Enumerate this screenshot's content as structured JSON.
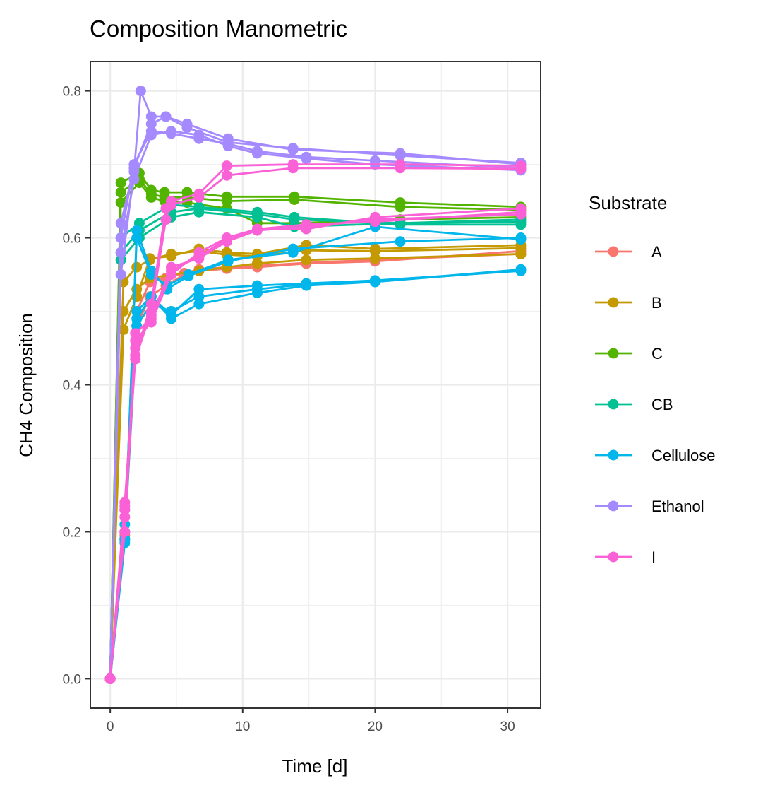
{
  "chart_data": {
    "type": "line",
    "title": "Composition Manometric",
    "xlabel": "Time [d]",
    "ylabel": "CH4 Composition",
    "xlim": [
      -1.5,
      32.5
    ],
    "ylim": [
      -0.04,
      0.84
    ],
    "x_ticks": [
      0,
      10,
      20,
      30
    ],
    "x_tick_labels": [
      "0",
      "10",
      "20",
      "30"
    ],
    "y_ticks": [
      0.0,
      0.2,
      0.4,
      0.6,
      0.8
    ],
    "y_tick_labels": [
      "0.0",
      "0.2",
      "0.4",
      "0.6",
      "0.8"
    ],
    "grid": true,
    "legend": {
      "title": "Substrate",
      "placement": "right"
    },
    "series": [
      {
        "name": "A",
        "color": "#F8766D",
        "lines": [
          [
            [
              0,
              0
            ],
            [
              1.1,
              0.195
            ],
            [
              2,
              0.48
            ],
            [
              3,
              0.52
            ],
            [
              4.2,
              0.535
            ],
            [
              5.6,
              0.55
            ],
            [
              6.7,
              0.555
            ],
            [
              8.8,
              0.558
            ],
            [
              11.1,
              0.56
            ],
            [
              14.8,
              0.565
            ],
            [
              20,
              0.568
            ],
            [
              31,
              0.582
            ]
          ],
          [
            [
              0,
              0
            ],
            [
              1.1,
              0.23
            ],
            [
              2,
              0.5
            ],
            [
              3,
              0.54
            ],
            [
              4.2,
              0.545
            ],
            [
              5.6,
              0.552
            ],
            [
              6.7,
              0.557
            ],
            [
              8.8,
              0.56
            ],
            [
              11.1,
              0.562
            ],
            [
              14.8,
              0.566
            ],
            [
              20,
              0.57
            ],
            [
              31,
              0.578
            ]
          ]
        ]
      },
      {
        "name": "B",
        "color": "#C49A00",
        "lines": [
          [
            [
              0,
              0
            ],
            [
              1,
              0.475
            ],
            [
              2,
              0.52
            ],
            [
              3,
              0.572
            ],
            [
              4.6,
              0.575
            ],
            [
              6.7,
              0.585
            ],
            [
              8.8,
              0.58
            ],
            [
              11.1,
              0.578
            ],
            [
              14.8,
              0.59
            ],
            [
              20,
              0.585
            ],
            [
              31,
              0.59
            ]
          ],
          [
            [
              0,
              0
            ],
            [
              1,
              0.54
            ],
            [
              2,
              0.56
            ],
            [
              3,
              0.57
            ],
            [
              4.6,
              0.578
            ],
            [
              6.7,
              0.582
            ],
            [
              8.8,
              0.577
            ],
            [
              11.1,
              0.575
            ],
            [
              14.8,
              0.583
            ],
            [
              20,
              0.582
            ],
            [
              31,
              0.586
            ]
          ],
          [
            [
              0,
              0
            ],
            [
              1,
              0.5
            ],
            [
              2,
              0.53
            ],
            [
              3,
              0.545
            ],
            [
              4.6,
              0.55
            ],
            [
              6.7,
              0.555
            ],
            [
              8.8,
              0.56
            ],
            [
              11.1,
              0.565
            ],
            [
              14.8,
              0.57
            ],
            [
              20,
              0.572
            ],
            [
              31,
              0.578
            ]
          ]
        ]
      },
      {
        "name": "C",
        "color": "#53B400",
        "lines": [
          [
            [
              0,
              0
            ],
            [
              0.8,
              0.675
            ],
            [
              2.2,
              0.688
            ],
            [
              3.1,
              0.665
            ],
            [
              4.1,
              0.662
            ],
            [
              5.8,
              0.662
            ],
            [
              8.8,
              0.656
            ],
            [
              13.9,
              0.656
            ],
            [
              21.9,
              0.648
            ],
            [
              31,
              0.642
            ]
          ],
          [
            [
              0,
              0
            ],
            [
              0.8,
              0.648
            ],
            [
              2.2,
              0.675
            ],
            [
              3.1,
              0.655
            ],
            [
              4.1,
              0.65
            ],
            [
              5.8,
              0.648
            ],
            [
              8.8,
              0.64
            ],
            [
              11.1,
              0.62
            ],
            [
              13.9,
              0.62
            ],
            [
              21.9,
              0.625
            ],
            [
              31,
              0.628
            ]
          ],
          [
            [
              0,
              0
            ],
            [
              0.8,
              0.662
            ],
            [
              2.2,
              0.68
            ],
            [
              3.1,
              0.66
            ],
            [
              4.1,
              0.655
            ],
            [
              5.8,
              0.655
            ],
            [
              8.8,
              0.65
            ],
            [
              13.9,
              0.652
            ],
            [
              21.9,
              0.642
            ],
            [
              31,
              0.638
            ]
          ]
        ]
      },
      {
        "name": "CB",
        "color": "#00C094",
        "lines": [
          [
            [
              0,
              0
            ],
            [
              0.8,
              0.6
            ],
            [
              2.2,
              0.62
            ],
            [
              4.6,
              0.645
            ],
            [
              6.7,
              0.642
            ],
            [
              11.1,
              0.635
            ],
            [
              13.9,
              0.628
            ],
            [
              21.9,
              0.618
            ],
            [
              31,
              0.618
            ]
          ],
          [
            [
              0,
              0
            ],
            [
              0.8,
              0.58
            ],
            [
              2.2,
              0.61
            ],
            [
              4.6,
              0.635
            ],
            [
              6.7,
              0.64
            ],
            [
              11.1,
              0.632
            ],
            [
              13.9,
              0.625
            ],
            [
              21.9,
              0.62
            ],
            [
              31,
              0.625
            ]
          ],
          [
            [
              0,
              0
            ],
            [
              0.8,
              0.57
            ],
            [
              2.2,
              0.6
            ],
            [
              4.6,
              0.628
            ],
            [
              6.7,
              0.635
            ],
            [
              11.1,
              0.628
            ],
            [
              13.9,
              0.615
            ],
            [
              21.9,
              0.62
            ],
            [
              31,
              0.622
            ]
          ]
        ]
      },
      {
        "name": "Cellulose",
        "color": "#00B6EB",
        "lines": [
          [
            [
              0,
              0
            ],
            [
              1.1,
              0.185
            ],
            [
              2,
              0.61
            ],
            [
              3.1,
              0.555
            ],
            [
              4.3,
              0.53
            ],
            [
              5.9,
              0.548
            ],
            [
              8.9,
              0.568
            ],
            [
              13.8,
              0.585
            ],
            [
              21.9,
              0.595
            ],
            [
              31,
              0.6
            ]
          ],
          [
            [
              0,
              0
            ],
            [
              1.1,
              0.19
            ],
            [
              2,
              0.5
            ],
            [
              3.1,
              0.52
            ],
            [
              4.6,
              0.49
            ],
            [
              6.7,
              0.51
            ],
            [
              11.1,
              0.525
            ],
            [
              14.8,
              0.535
            ],
            [
              20,
              0.54
            ],
            [
              31,
              0.556
            ]
          ],
          [
            [
              0,
              0
            ],
            [
              1.1,
              0.2
            ],
            [
              2,
              0.48
            ],
            [
              3.1,
              0.51
            ],
            [
              4.6,
              0.5
            ],
            [
              6.7,
              0.52
            ],
            [
              11.1,
              0.53
            ],
            [
              14.8,
              0.537
            ],
            [
              20,
              0.54
            ],
            [
              31,
              0.557
            ]
          ],
          [
            [
              0,
              0
            ],
            [
              1.1,
              0.21
            ],
            [
              2,
              0.49
            ],
            [
              3.1,
              0.52
            ],
            [
              4.6,
              0.495
            ],
            [
              6.7,
              0.53
            ],
            [
              11.1,
              0.535
            ],
            [
              14.8,
              0.538
            ],
            [
              20,
              0.542
            ],
            [
              31,
              0.555
            ]
          ],
          [
            [
              0,
              0
            ],
            [
              1.1,
              0.19
            ],
            [
              2,
              0.6
            ],
            [
              3.1,
              0.55
            ],
            [
              4.3,
              0.535
            ],
            [
              5.9,
              0.55
            ],
            [
              8.9,
              0.57
            ],
            [
              13.8,
              0.58
            ],
            [
              20,
              0.615
            ],
            [
              31,
              0.598
            ]
          ]
        ]
      },
      {
        "name": "Ethanol",
        "color": "#A58AFF",
        "lines": [
          [
            [
              0,
              0
            ],
            [
              0.8,
              0.55
            ],
            [
              1.8,
              0.69
            ],
            [
              2.3,
              0.8
            ],
            [
              3.1,
              0.765
            ],
            [
              4.2,
              0.765
            ],
            [
              5.8,
              0.755
            ],
            [
              8.9,
              0.735
            ],
            [
              13.8,
              0.72
            ],
            [
              21.9,
              0.715
            ],
            [
              31,
              0.7
            ]
          ],
          [
            [
              0,
              0
            ],
            [
              0.8,
              0.6
            ],
            [
              1.8,
              0.7
            ],
            [
              3.1,
              0.745
            ],
            [
              4.6,
              0.742
            ],
            [
              6.7,
              0.735
            ],
            [
              8.9,
              0.728
            ],
            [
              11.1,
              0.718
            ],
            [
              14.8,
              0.71
            ],
            [
              20,
              0.705
            ],
            [
              31,
              0.695
            ]
          ],
          [
            [
              0,
              0
            ],
            [
              0.8,
              0.62
            ],
            [
              1.8,
              0.695
            ],
            [
              3.1,
              0.755
            ],
            [
              4.2,
              0.765
            ],
            [
              5.8,
              0.75
            ],
            [
              8.9,
              0.73
            ],
            [
              13.8,
              0.722
            ],
            [
              21.9,
              0.712
            ],
            [
              31,
              0.702
            ]
          ],
          [
            [
              0,
              0
            ],
            [
              0.8,
              0.58
            ],
            [
              1.8,
              0.68
            ],
            [
              3.1,
              0.74
            ],
            [
              4.6,
              0.745
            ],
            [
              6.7,
              0.74
            ],
            [
              8.9,
              0.725
            ],
            [
              11.1,
              0.715
            ],
            [
              14.8,
              0.708
            ],
            [
              20,
              0.7
            ],
            [
              31,
              0.692
            ]
          ]
        ]
      },
      {
        "name": "I",
        "color": "#FB61D7",
        "lines": [
          [
            [
              0,
              0
            ],
            [
              1.1,
              0.235
            ],
            [
              1.9,
              0.435
            ],
            [
              3.1,
              0.5
            ],
            [
              4.2,
              0.625
            ],
            [
              4.6,
              0.65
            ],
            [
              6.7,
              0.66
            ],
            [
              8.8,
              0.698
            ],
            [
              13.8,
              0.7
            ],
            [
              21.9,
              0.7
            ],
            [
              31,
              0.698
            ]
          ],
          [
            [
              0,
              0
            ],
            [
              1.1,
              0.2
            ],
            [
              1.9,
              0.46
            ],
            [
              3.1,
              0.485
            ],
            [
              4.6,
              0.55
            ],
            [
              6.7,
              0.58
            ],
            [
              8.8,
              0.6
            ],
            [
              11.1,
              0.612
            ],
            [
              14.8,
              0.612
            ],
            [
              20,
              0.628
            ],
            [
              31,
              0.64
            ]
          ],
          [
            [
              0,
              0
            ],
            [
              1.1,
              0.22
            ],
            [
              1.9,
              0.47
            ],
            [
              3.1,
              0.49
            ],
            [
              4.6,
              0.56
            ],
            [
              6.7,
              0.572
            ],
            [
              8.8,
              0.595
            ],
            [
              11.1,
              0.61
            ],
            [
              14.8,
              0.615
            ],
            [
              20,
              0.625
            ],
            [
              31,
              0.632
            ]
          ],
          [
            [
              0,
              0
            ],
            [
              1.1,
              0.24
            ],
            [
              1.9,
              0.44
            ],
            [
              3.1,
              0.51
            ],
            [
              4.2,
              0.64
            ],
            [
              4.6,
              0.645
            ],
            [
              6.7,
              0.655
            ],
            [
              8.8,
              0.685
            ],
            [
              13.8,
              0.695
            ],
            [
              21.9,
              0.695
            ],
            [
              31,
              0.694
            ]
          ],
          [
            [
              0,
              0
            ],
            [
              1.1,
              0.23
            ],
            [
              1.9,
              0.45
            ],
            [
              3.1,
              0.495
            ],
            [
              4.6,
              0.555
            ],
            [
              6.7,
              0.575
            ],
            [
              8.8,
              0.598
            ],
            [
              11.1,
              0.612
            ],
            [
              14.8,
              0.618
            ],
            [
              20,
              0.622
            ],
            [
              31,
              0.635
            ]
          ]
        ]
      }
    ]
  }
}
